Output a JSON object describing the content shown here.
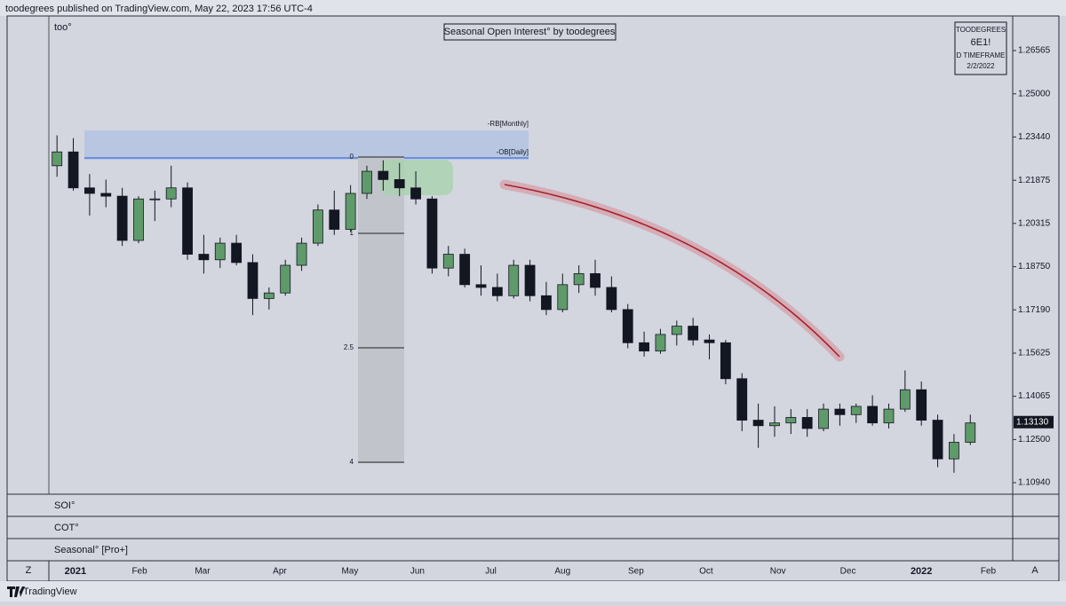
{
  "header": {
    "text": "toodegrees published on TradingView.com, May 22, 2023 17:56 UTC-4"
  },
  "chart_data": {
    "type": "candlestick",
    "title": "Seasonal Open Interest° by toodegrees",
    "indicator": "too°",
    "info": [
      "TOODEGREES",
      "6E1!",
      "D TIMEFRAME",
      "2/2/2022"
    ],
    "zones": [
      "-RB[Monthly]",
      "-OB[Daily]"
    ],
    "fib_levels": [
      0,
      1,
      2.5,
      4
    ],
    "x": [
      0,
      1,
      2,
      3,
      4,
      5,
      6,
      7,
      8,
      9,
      10,
      11,
      12,
      13,
      14,
      15,
      16,
      17,
      18,
      19,
      20,
      21,
      22,
      23,
      24,
      25,
      26,
      27,
      28,
      29,
      30,
      31,
      32,
      33,
      34,
      35,
      36,
      37,
      38,
      39,
      40,
      41,
      42,
      43,
      44,
      45,
      46,
      47,
      48,
      49,
      50,
      51,
      52,
      53,
      54,
      55,
      56
    ],
    "ohlc": [
      [
        1.224,
        1.235,
        1.22,
        1.229
      ],
      [
        1.229,
        1.234,
        1.215,
        1.216
      ],
      [
        1.216,
        1.221,
        1.206,
        1.214
      ],
      [
        1.214,
        1.219,
        1.209,
        1.213
      ],
      [
        1.213,
        1.216,
        1.195,
        1.197
      ],
      [
        1.197,
        1.213,
        1.196,
        1.212
      ],
      [
        1.212,
        1.215,
        1.204,
        1.212
      ],
      [
        1.212,
        1.224,
        1.209,
        1.216
      ],
      [
        1.216,
        1.218,
        1.19,
        1.192
      ],
      [
        1.192,
        1.199,
        1.185,
        1.19
      ],
      [
        1.19,
        1.198,
        1.187,
        1.196
      ],
      [
        1.196,
        1.199,
        1.188,
        1.189
      ],
      [
        1.189,
        1.192,
        1.17,
        1.176
      ],
      [
        1.176,
        1.18,
        1.172,
        1.178
      ],
      [
        1.178,
        1.19,
        1.177,
        1.188
      ],
      [
        1.188,
        1.198,
        1.186,
        1.196
      ],
      [
        1.196,
        1.21,
        1.195,
        1.208
      ],
      [
        1.208,
        1.215,
        1.199,
        1.201
      ],
      [
        1.201,
        1.217,
        1.2,
        1.214
      ],
      [
        1.214,
        1.224,
        1.212,
        1.222
      ],
      [
        1.222,
        1.226,
        1.215,
        1.219
      ],
      [
        1.219,
        1.225,
        1.213,
        1.216
      ],
      [
        1.216,
        1.222,
        1.21,
        1.212
      ],
      [
        1.212,
        1.213,
        1.185,
        1.187
      ],
      [
        1.187,
        1.195,
        1.184,
        1.192
      ],
      [
        1.192,
        1.194,
        1.18,
        1.181
      ],
      [
        1.181,
        1.188,
        1.177,
        1.18
      ],
      [
        1.18,
        1.185,
        1.175,
        1.177
      ],
      [
        1.177,
        1.19,
        1.176,
        1.188
      ],
      [
        1.188,
        1.19,
        1.175,
        1.177
      ],
      [
        1.177,
        1.182,
        1.17,
        1.172
      ],
      [
        1.172,
        1.185,
        1.171,
        1.181
      ],
      [
        1.181,
        1.188,
        1.178,
        1.185
      ],
      [
        1.185,
        1.19,
        1.177,
        1.18
      ],
      [
        1.18,
        1.184,
        1.171,
        1.172
      ],
      [
        1.172,
        1.174,
        1.158,
        1.16
      ],
      [
        1.16,
        1.164,
        1.155,
        1.157
      ],
      [
        1.157,
        1.165,
        1.156,
        1.163
      ],
      [
        1.163,
        1.168,
        1.159,
        1.166
      ],
      [
        1.166,
        1.169,
        1.159,
        1.161
      ],
      [
        1.161,
        1.163,
        1.154,
        1.16
      ],
      [
        1.16,
        1.161,
        1.145,
        1.147
      ],
      [
        1.147,
        1.149,
        1.128,
        1.132
      ],
      [
        1.132,
        1.138,
        1.122,
        1.13
      ],
      [
        1.13,
        1.137,
        1.126,
        1.131
      ],
      [
        1.131,
        1.136,
        1.127,
        1.133
      ],
      [
        1.133,
        1.136,
        1.126,
        1.129
      ],
      [
        1.129,
        1.138,
        1.128,
        1.136
      ],
      [
        1.136,
        1.138,
        1.13,
        1.134
      ],
      [
        1.134,
        1.138,
        1.131,
        1.137
      ],
      [
        1.137,
        1.141,
        1.13,
        1.131
      ],
      [
        1.131,
        1.138,
        1.129,
        1.136
      ],
      [
        1.136,
        1.15,
        1.135,
        1.143
      ],
      [
        1.143,
        1.146,
        1.13,
        1.132
      ],
      [
        1.132,
        1.134,
        1.115,
        1.118
      ],
      [
        1.118,
        1.127,
        1.113,
        1.124
      ],
      [
        1.124,
        1.134,
        1.123,
        1.131
      ]
    ],
    "up_color": "#5f9a6b",
    "down_color": "#131722",
    "xlim": [
      -0.5,
      58.6
    ],
    "xticks": [
      {
        "value": 1.13,
        "label": "2021"
      },
      {
        "value": 5.06,
        "label": "Feb"
      },
      {
        "value": 8.92,
        "label": "Mar"
      },
      {
        "value": 13.66,
        "label": "Apr"
      },
      {
        "value": 17.96,
        "label": "May"
      },
      {
        "value": 22.1,
        "label": "Jun"
      },
      {
        "value": 26.6,
        "label": "Jul"
      },
      {
        "value": 31.0,
        "label": "Aug"
      },
      {
        "value": 35.5,
        "label": "Sep"
      },
      {
        "value": 39.8,
        "label": "Oct"
      },
      {
        "value": 44.2,
        "label": "Nov"
      },
      {
        "value": 48.5,
        "label": "Dec"
      },
      {
        "value": 53.0,
        "label": "2022"
      },
      {
        "value": 57.1,
        "label": "Feb"
      }
    ],
    "ylim": [
      1.10523,
      1.27816
    ],
    "yticks": [
      {
        "value": 1.26565,
        "label": "1.26565"
      },
      {
        "value": 1.25,
        "label": "1.25000"
      },
      {
        "value": 1.2344,
        "label": "1.23440"
      },
      {
        "value": 1.21875,
        "label": "1.21875"
      },
      {
        "value": 1.20315,
        "label": "1.20315"
      },
      {
        "value": 1.1875,
        "label": "1.18750"
      },
      {
        "value": 1.1719,
        "label": "1.17190"
      },
      {
        "value": 1.15625,
        "label": "1.15625"
      },
      {
        "value": 1.14065,
        "label": "1.14065"
      },
      {
        "value": 1.125,
        "label": "1.12500"
      },
      {
        "value": 1.1094,
        "label": "1.10940"
      }
    ],
    "last_price": {
      "value": 1.1313,
      "label": "1.13130"
    }
  },
  "panes": [
    "SOI°",
    "COT°",
    "Seasonal° [Pro+]"
  ],
  "axis_buttons": [
    "Z",
    "A"
  ],
  "footer": {
    "brand": "TradingView"
  }
}
